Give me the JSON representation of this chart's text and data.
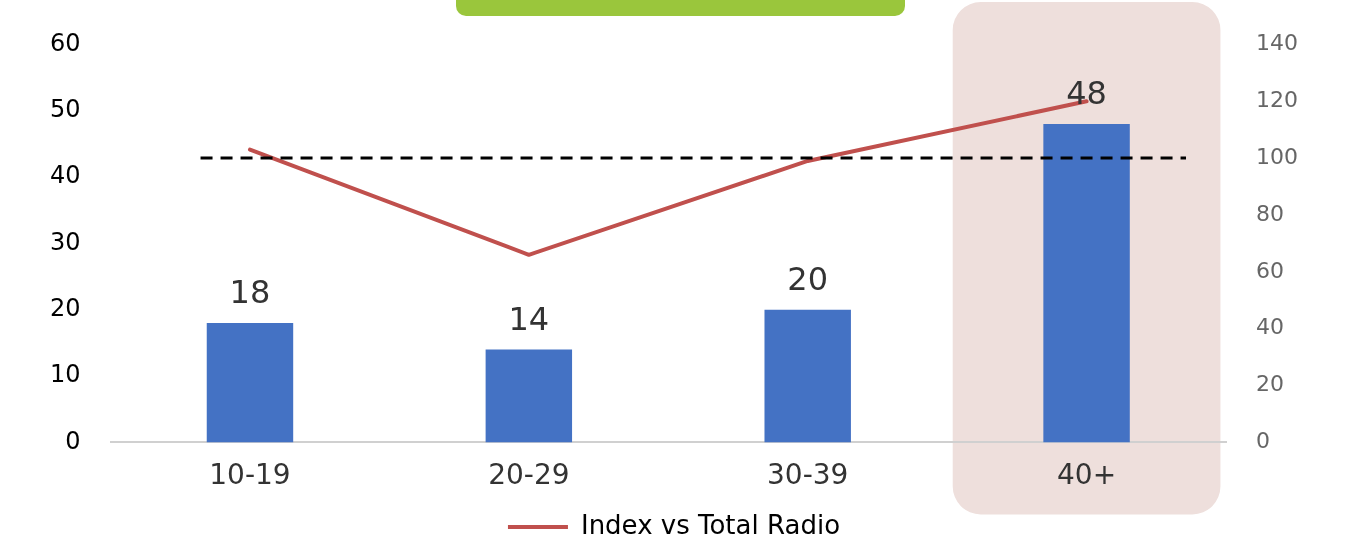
{
  "chart_data": {
    "type": "bar",
    "categories": [
      "10-19",
      "20-29",
      "30-39",
      "40+"
    ],
    "series": [
      {
        "color": "#4472c4",
        "values": [
          18,
          14,
          20,
          48
        ],
        "value_labels": [
          "18",
          "14",
          "20",
          "48"
        ]
      },
      {
        "type": "line",
        "name": "Index vs Total Radio",
        "color": "#c0504d",
        "axis": "y2",
        "values": [
          103,
          66,
          99,
          120
        ],
        "marker": "none"
      }
    ],
    "ylim": [
      0,
      60
    ],
    "yticks": [
      0,
      10,
      20,
      30,
      40,
      50,
      60
    ],
    "y2lim": [
      0,
      140
    ],
    "y2ticks": [
      0,
      20,
      40,
      60,
      80,
      100,
      120,
      140
    ],
    "bands": [
      {
        "axis": "x",
        "from": "40+",
        "to": "40+",
        "color": "#eedfdc"
      }
    ],
    "ref_lines": [
      {
        "axis": "y2",
        "value": 100,
        "color": "#000000",
        "line_style": "dashed"
      }
    ],
    "grid": false,
    "legend": "bottom"
  }
}
